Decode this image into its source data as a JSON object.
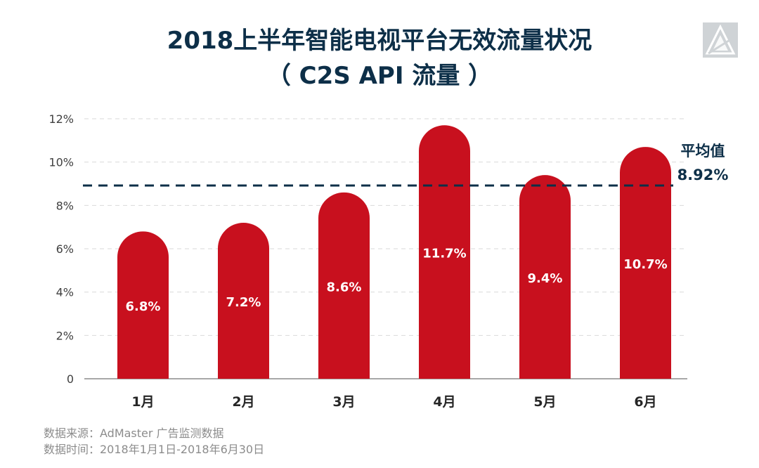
{
  "title_line1": "2018上半年智能电视平台无效流量状况",
  "title_line2": "（ C2S API 流量 ）",
  "logo_icon": "admaster-triangle-logo-icon",
  "chart_data": {
    "type": "bar",
    "categories": [
      "1月",
      "2月",
      "3月",
      "4月",
      "5月",
      "6月"
    ],
    "values": [
      6.8,
      7.2,
      8.6,
      11.7,
      9.4,
      10.7
    ],
    "value_labels": [
      "6.8%",
      "7.2%",
      "8.6%",
      "11.7%",
      "9.4%",
      "10.7%"
    ],
    "yticks": [
      "0",
      "2%",
      "4%",
      "6%",
      "8%",
      "10%",
      "12%"
    ],
    "ylim": [
      0,
      12
    ],
    "grid": true,
    "bar_color": "#c8101e",
    "average": {
      "value": 8.92,
      "label": "平均值",
      "value_label": "8.92%",
      "color": "#0d2f48"
    }
  },
  "footer": {
    "source": "数据来源：AdMaster 广告监测数据",
    "period": "数据时间：2018年1月1日-2018年6月30日"
  }
}
